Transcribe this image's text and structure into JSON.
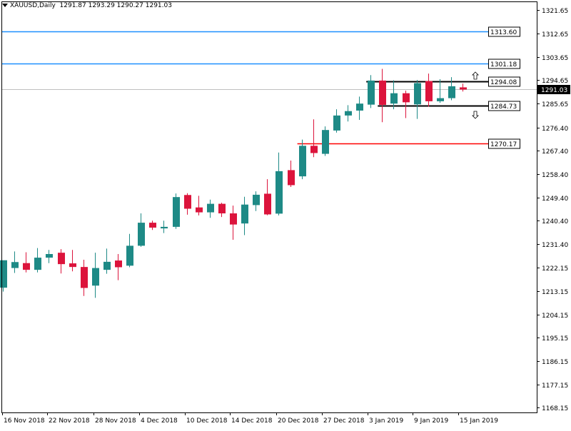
{
  "header": {
    "symbol": "XAUUSD,Daily",
    "ohlc": "1291.87 1293.29 1290.27 1291.03"
  },
  "colors": {
    "bull": "#1e8a86",
    "bear": "#dc143c",
    "resistance_line": "#1e90ff",
    "support_line": "#ff0000",
    "range_line": "#000000",
    "current_price_line": "#c0c0c0"
  },
  "chart_data": {
    "type": "candlestick",
    "title": "XAUUSD,Daily",
    "ylim": [
      1166.32,
      1324.78
    ],
    "y_ticks": [
      "1321.65",
      "1312.65",
      "1303.65",
      "1294.65",
      "1285.65",
      "1276.40",
      "1267.40",
      "1258.40",
      "1249.40",
      "1240.40",
      "1231.40",
      "1222.15",
      "1213.15",
      "1204.15",
      "1195.15",
      "1186.15",
      "1177.15",
      "1168.15"
    ],
    "x_ticks": [
      "16 Nov 2018",
      "22 Nov 2018",
      "28 Nov 2018",
      "4 Dec 2018",
      "10 Dec 2018",
      "14 Dec 2018",
      "20 Dec 2018",
      "27 Dec 2018",
      "3 Jan 2019",
      "9 Jan 2019",
      "15 Jan 2019"
    ],
    "candles": [
      {
        "o": 1214.5,
        "h": 1224.7,
        "l": 1213.0,
        "c": 1225.1
      },
      {
        "o": 1222.1,
        "h": 1228.5,
        "l": 1220.2,
        "c": 1224.4
      },
      {
        "o": 1224.0,
        "h": 1228.2,
        "l": 1220.4,
        "c": 1221.4
      },
      {
        "o": 1221.4,
        "h": 1229.8,
        "l": 1220.4,
        "c": 1226.1
      },
      {
        "o": 1226.1,
        "h": 1229.1,
        "l": 1224.0,
        "c": 1227.5
      },
      {
        "o": 1228.0,
        "h": 1229.4,
        "l": 1220.0,
        "c": 1223.6
      },
      {
        "o": 1223.9,
        "h": 1229.1,
        "l": 1220.8,
        "c": 1222.5
      },
      {
        "o": 1222.5,
        "h": 1225.3,
        "l": 1211.3,
        "c": 1214.4
      },
      {
        "o": 1215.3,
        "h": 1228.0,
        "l": 1210.6,
        "c": 1222.1
      },
      {
        "o": 1221.4,
        "h": 1229.6,
        "l": 1219.9,
        "c": 1224.5
      },
      {
        "o": 1225.0,
        "h": 1227.5,
        "l": 1217.4,
        "c": 1222.4
      },
      {
        "o": 1223.0,
        "h": 1235.3,
        "l": 1222.4,
        "c": 1230.7
      },
      {
        "o": 1230.7,
        "h": 1243.2,
        "l": 1230.3,
        "c": 1239.6
      },
      {
        "o": 1239.6,
        "h": 1240.4,
        "l": 1236.8,
        "c": 1237.7
      },
      {
        "o": 1237.4,
        "h": 1240.4,
        "l": 1235.6,
        "c": 1238.0
      },
      {
        "o": 1238.0,
        "h": 1250.9,
        "l": 1237.2,
        "c": 1249.5
      },
      {
        "o": 1250.3,
        "h": 1251.0,
        "l": 1242.7,
        "c": 1245.0
      },
      {
        "o": 1245.5,
        "h": 1250.0,
        "l": 1242.4,
        "c": 1243.6
      },
      {
        "o": 1243.6,
        "h": 1248.5,
        "l": 1241.5,
        "c": 1246.9
      },
      {
        "o": 1246.9,
        "h": 1247.3,
        "l": 1241.8,
        "c": 1243.2
      },
      {
        "o": 1243.2,
        "h": 1246.2,
        "l": 1233.0,
        "c": 1238.9
      },
      {
        "o": 1239.3,
        "h": 1249.6,
        "l": 1234.8,
        "c": 1246.6
      },
      {
        "o": 1246.4,
        "h": 1251.7,
        "l": 1244.1,
        "c": 1250.4
      },
      {
        "o": 1250.8,
        "h": 1256.4,
        "l": 1242.5,
        "c": 1242.8
      },
      {
        "o": 1243.1,
        "h": 1266.7,
        "l": 1242.4,
        "c": 1259.5
      },
      {
        "o": 1259.9,
        "h": 1263.6,
        "l": 1253.4,
        "c": 1254.1
      },
      {
        "o": 1257.5,
        "h": 1271.7,
        "l": 1256.4,
        "c": 1269.3
      },
      {
        "o": 1269.3,
        "h": 1279.5,
        "l": 1264.9,
        "c": 1266.5
      },
      {
        "o": 1266.2,
        "h": 1276.8,
        "l": 1265.4,
        "c": 1275.4
      },
      {
        "o": 1275.2,
        "h": 1283.4,
        "l": 1274.4,
        "c": 1281.0
      },
      {
        "o": 1281.0,
        "h": 1285.0,
        "l": 1278.7,
        "c": 1282.7
      },
      {
        "o": 1282.9,
        "h": 1288.3,
        "l": 1279.3,
        "c": 1285.6
      },
      {
        "o": 1285.2,
        "h": 1296.6,
        "l": 1283.9,
        "c": 1294.5
      },
      {
        "o": 1294.5,
        "h": 1299.0,
        "l": 1278.4,
        "c": 1285.1
      },
      {
        "o": 1285.6,
        "h": 1294.6,
        "l": 1283.4,
        "c": 1289.6
      },
      {
        "o": 1289.6,
        "h": 1290.6,
        "l": 1280.0,
        "c": 1286.1
      },
      {
        "o": 1285.3,
        "h": 1294.7,
        "l": 1279.7,
        "c": 1293.5
      },
      {
        "o": 1294.3,
        "h": 1297.2,
        "l": 1284.4,
        "c": 1286.5
      },
      {
        "o": 1286.5,
        "h": 1295.0,
        "l": 1285.9,
        "c": 1287.7
      },
      {
        "o": 1287.7,
        "h": 1295.8,
        "l": 1286.9,
        "c": 1292.3
      },
      {
        "o": 1291.87,
        "h": 1293.29,
        "l": 1290.27,
        "c": 1291.03
      }
    ],
    "horizontal_lines": [
      {
        "label": "1313.60",
        "value": 1313.6,
        "color": "#1e90ff",
        "start_index": 0
      },
      {
        "label": "1301.18",
        "value": 1301.18,
        "color": "#1e90ff",
        "start_index": 0
      },
      {
        "label": "1294.08",
        "value": 1294.08,
        "color": "#000000",
        "start_index": 32
      },
      {
        "label": "1284.73",
        "value": 1284.73,
        "color": "#000000",
        "start_index": 33
      },
      {
        "label": "1270.17",
        "value": 1270.17,
        "color": "#ff0000",
        "start_index": 26
      }
    ],
    "current_price": {
      "label": "1291.03",
      "value": 1291.03
    },
    "arrows": [
      {
        "direction": "up",
        "icon": "up-arrow-icon",
        "value": 1296.5,
        "index": 40
      },
      {
        "direction": "down",
        "icon": "down-arrow-icon",
        "value": 1281.2,
        "index": 40
      }
    ]
  }
}
